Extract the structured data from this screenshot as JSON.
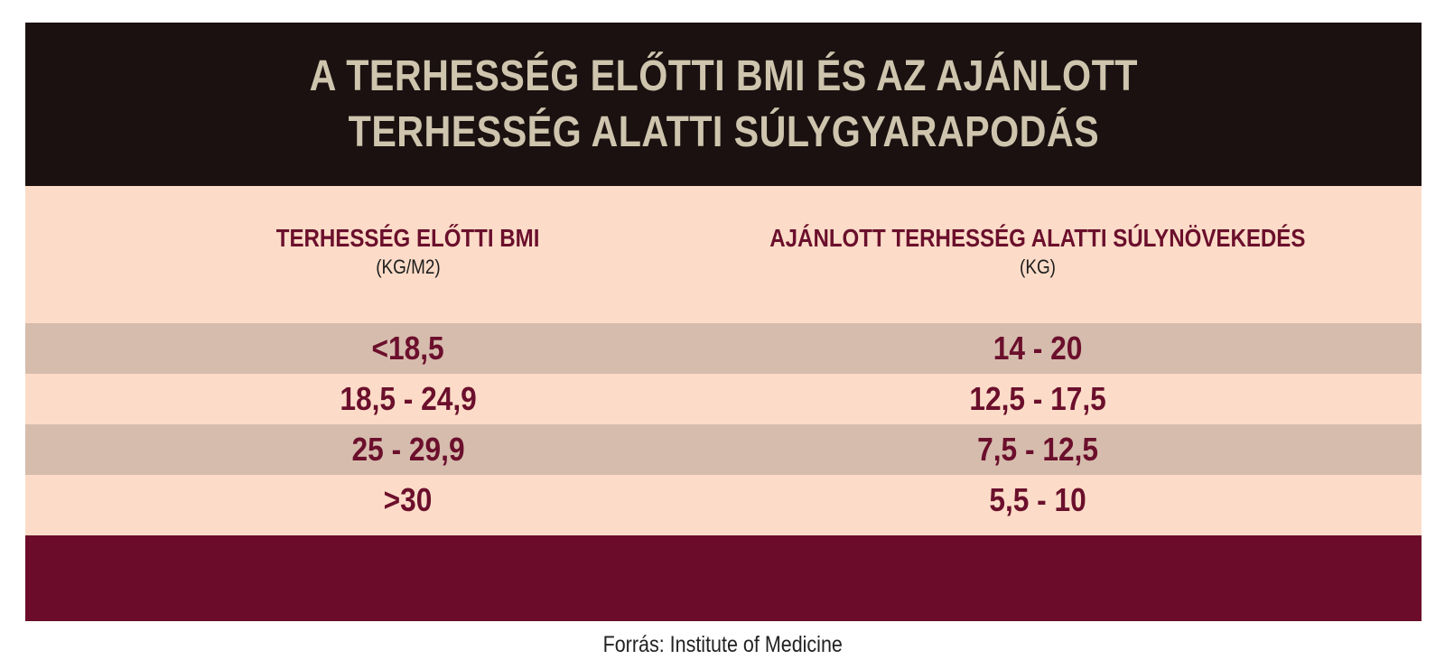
{
  "title": {
    "line1": "A TERHESSÉG ELŐTTI BMI ÉS AZ AJÁNLOTT",
    "line2": "TERHESSÉG ALATTI SÚLYGYARAPODÁS"
  },
  "columns": [
    {
      "heading": "TERHESSÉG ELŐTTI BMI",
      "unit": "(KG/M2)"
    },
    {
      "heading": "AJÁNLOTT TERHESSÉG ALATTI SÚLYNÖVEKEDÉS",
      "unit": "(KG)"
    }
  ],
  "rows": [
    {
      "bmi": "<18,5",
      "gain": "14 - 20"
    },
    {
      "bmi": "18,5 - 24,9",
      "gain": "12,5 - 17,5"
    },
    {
      "bmi": "25 - 29,9",
      "gain": "7,5 - 12,5"
    },
    {
      "bmi": ">30",
      "gain": "5,5 - 10"
    }
  ],
  "source": "Forrás: Institute of Medicine",
  "colors": {
    "title_band": "#1a1110",
    "title_text": "#cfc4ad",
    "body_band": "#fcdcc8",
    "shaded_row": "#d6bcad",
    "accent_text": "#6b0f2c",
    "footer_band": "#6b0c2b"
  }
}
